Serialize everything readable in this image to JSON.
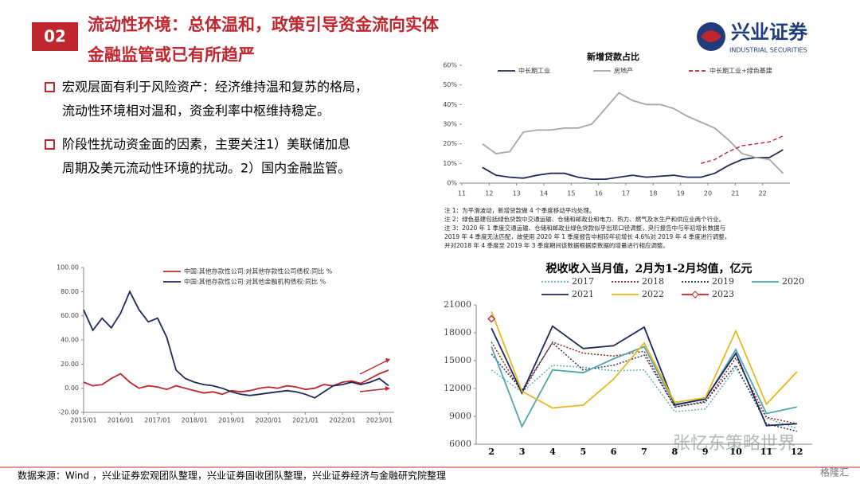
{
  "header": {
    "number": "02",
    "title_lines": [
      "流动性环境：总体温和，政策引导资金流向实体",
      "金融监管或已有所趋严"
    ],
    "logo": "兴业证券",
    "logo_sub": "INDUSTRIAL SECURITIES"
  },
  "bullets": [
    [
      "宏观层面有利于风险资产：经济维持温和复苏的格局，",
      "流动性环境相对温和，资金利率中枢维持稳定。"
    ],
    [
      "阶段性扰动资金面的因素，主要关注1）美联储加息",
      "周期及美元流动性环境的扰动。2）国内金融监管。"
    ]
  ],
  "notes": [
    "注 1：为平滑波动，新增贷款做 4 个季度移动平均处理。",
    "注 2：绿色基建包括绿色贷款中交通运输、仓储和邮政业和电力、热力、燃气及水生产和供应业两个行业。",
    "注 3：2020 年 1 季度交通运输、仓储和邮政业绿色贷款似乎出现口径调整，央行报告中与年初增长数据与",
    "2019 年 4 季度无法匹配，故使用 2020 年 1 季度报告中相较年初增长 4.6%对 2019 年 4 季度进行调整，",
    "并对2018 年 4 季度至 2019 年 3 季度期间该数据根据原数据的增量进行相应调整。"
  ],
  "footer": "数据来源：Wind ，兴业证券宏观团队整理，兴业证券固收团队整理，兴业证券经济与金融研究院整理",
  "watermark": "张忆东策略世界",
  "brand": "格隆汇",
  "chart_data": [
    {
      "type": "line",
      "title": "新增贷款占比",
      "x": [
        11.75,
        12.25,
        12.75,
        13.25,
        13.75,
        14.25,
        14.75,
        15.25,
        15.75,
        16.25,
        16.75,
        17.25,
        17.75,
        18.25,
        18.75,
        19.25,
        19.75,
        20.25,
        20.75,
        21.25,
        21.75,
        22.25,
        22.75
      ],
      "series": [
        {
          "name": "中长期工业",
          "color": "#1f2a5c",
          "values": [
            8,
            4,
            3,
            2.5,
            4,
            5,
            5,
            3,
            2,
            2,
            3,
            4,
            3,
            3.5,
            4,
            3,
            3,
            5,
            9,
            12,
            13,
            13,
            17
          ]
        },
        {
          "name": "房地产",
          "color": "#a6a6a6",
          "values": [
            20,
            15,
            16,
            26,
            27,
            27,
            28,
            28,
            30,
            38,
            46,
            42,
            40,
            40,
            38,
            34,
            31,
            28,
            22,
            15,
            13,
            12,
            5
          ]
        },
        {
          "name": "中长期工业+绿色基建",
          "color": "#c0262d",
          "dash": "dashed",
          "values": [
            null,
            null,
            null,
            null,
            null,
            null,
            null,
            null,
            null,
            null,
            null,
            null,
            null,
            null,
            null,
            null,
            10,
            12,
            16,
            19,
            20,
            21,
            24
          ]
        }
      ],
      "xlim": [
        11,
        23
      ],
      "xticks": [
        11,
        12,
        13,
        14,
        15,
        16,
        17,
        18,
        19,
        20,
        21,
        22
      ],
      "ylim": [
        0,
        60
      ],
      "yticks": [
        {
          "value": 0,
          "label": "0%"
        },
        {
          "value": 10,
          "label": "10%"
        },
        {
          "value": 20,
          "label": "20%"
        },
        {
          "value": 30,
          "label": "30%"
        },
        {
          "value": 40,
          "label": "40%"
        },
        {
          "value": 50,
          "label": "50%"
        },
        {
          "value": 60,
          "label": "60%"
        }
      ]
    },
    {
      "type": "line",
      "x": [
        2015,
        2015.25,
        2015.5,
        2015.75,
        2016,
        2016.25,
        2016.5,
        2016.75,
        2017,
        2017.25,
        2017.5,
        2017.75,
        2018,
        2018.25,
        2018.5,
        2018.75,
        2019,
        2019.25,
        2019.5,
        2019.75,
        2020,
        2020.25,
        2020.5,
        2020.75,
        2021,
        2021.25,
        2021.5,
        2021.75,
        2022,
        2022.25,
        2022.5,
        2022.75,
        2023,
        2023.25
      ],
      "series": [
        {
          "name": "中国:其他存款性公司:对其他存款性公司债权:同比 %",
          "color": "#c0262d",
          "values": [
            5,
            2,
            3,
            8,
            12,
            5,
            0,
            2,
            1,
            -1,
            2,
            0,
            -2,
            -4,
            -3,
            -5,
            -2,
            -3,
            -2,
            0,
            1,
            0,
            2,
            1,
            -1,
            0,
            3,
            2,
            5,
            6,
            4,
            8,
            12,
            15
          ]
        },
        {
          "name": "中国:其他存款性公司:对其他金融机构债权:同比 %",
          "color": "#1f2a5c",
          "values": [
            65,
            48,
            58,
            50,
            62,
            80,
            65,
            55,
            58,
            42,
            15,
            8,
            5,
            3,
            2,
            0,
            -3,
            -5,
            -6,
            -5,
            -4,
            -3,
            -2,
            -3,
            -5,
            -8,
            -3,
            2,
            3,
            5,
            3,
            5,
            8,
            2
          ]
        }
      ],
      "xlim": [
        2015,
        2023.4
      ],
      "xticks": [
        {
          "value": 2015,
          "label": "2015/01"
        },
        {
          "value": 2016,
          "label": "2016/01"
        },
        {
          "value": 2017,
          "label": "2017/01"
        },
        {
          "value": 2018,
          "label": "2018/01"
        },
        {
          "value": 2019,
          "label": "2019/01"
        },
        {
          "value": 2020,
          "label": "2020/01"
        },
        {
          "value": 2021,
          "label": "2021/01"
        },
        {
          "value": 2022,
          "label": "2022/01"
        },
        {
          "value": 2023,
          "label": "2023/01"
        }
      ],
      "ylim": [
        -20,
        100
      ],
      "yticks": [
        {
          "value": -20,
          "label": "-20.00"
        },
        {
          "value": 0,
          "label": "0.00"
        },
        {
          "value": 20,
          "label": "20.00"
        },
        {
          "value": 40,
          "label": "40.00"
        },
        {
          "value": 60,
          "label": "60.00"
        },
        {
          "value": 80,
          "label": "80.00"
        },
        {
          "value": 100,
          "label": "100.00"
        }
      ]
    },
    {
      "type": "line",
      "title": "税收收入当月值，2月为1-2月均值，亿元",
      "categories": [
        "2",
        "3",
        "4",
        "5",
        "6",
        "7",
        "8",
        "9",
        "10",
        "11",
        "12"
      ],
      "series": [
        {
          "name": "2017",
          "color": "#5aaeb8",
          "dash": "dotted",
          "values": [
            14000,
            11600,
            14500,
            14300,
            13900,
            14000,
            9500,
            9800,
            14200,
            8800,
            7700
          ]
        },
        {
          "name": "2018",
          "color": "#8b1a1a",
          "dash": "dotted",
          "values": [
            17000,
            11500,
            17000,
            15800,
            15500,
            16000,
            10000,
            10500,
            15300,
            8900,
            8200
          ]
        },
        {
          "name": "2019",
          "color": "#1f2a5c",
          "dash": "dotted",
          "values": [
            15700,
            11800,
            16900,
            14000,
            14500,
            15600,
            10000,
            10600,
            14500,
            8200,
            7400
          ]
        },
        {
          "name": "2020",
          "color": "#4ea6ae",
          "values": [
            16500,
            7900,
            14000,
            13700,
            15200,
            16500,
            10300,
            10800,
            16200,
            9300,
            10000
          ]
        },
        {
          "name": "2021",
          "color": "#1f2a5c",
          "values": [
            18500,
            11500,
            18700,
            16300,
            16600,
            18600,
            10200,
            10900,
            15800,
            8000,
            8200
          ]
        },
        {
          "name": "2022",
          "color": "#e8b820",
          "values": [
            20300,
            11700,
            9900,
            10200,
            13000,
            16900,
            10500,
            11000,
            18200,
            10300,
            13800
          ]
        },
        {
          "name": "2023",
          "color": "#c0262d",
          "marker": "diamond",
          "values": [
            19500,
            null,
            null,
            null,
            null,
            null,
            null,
            null,
            null,
            null,
            null
          ]
        }
      ],
      "ylim": [
        6000,
        21000
      ],
      "yticks": [
        6000,
        9000,
        12000,
        15000,
        18000,
        21000
      ]
    }
  ]
}
